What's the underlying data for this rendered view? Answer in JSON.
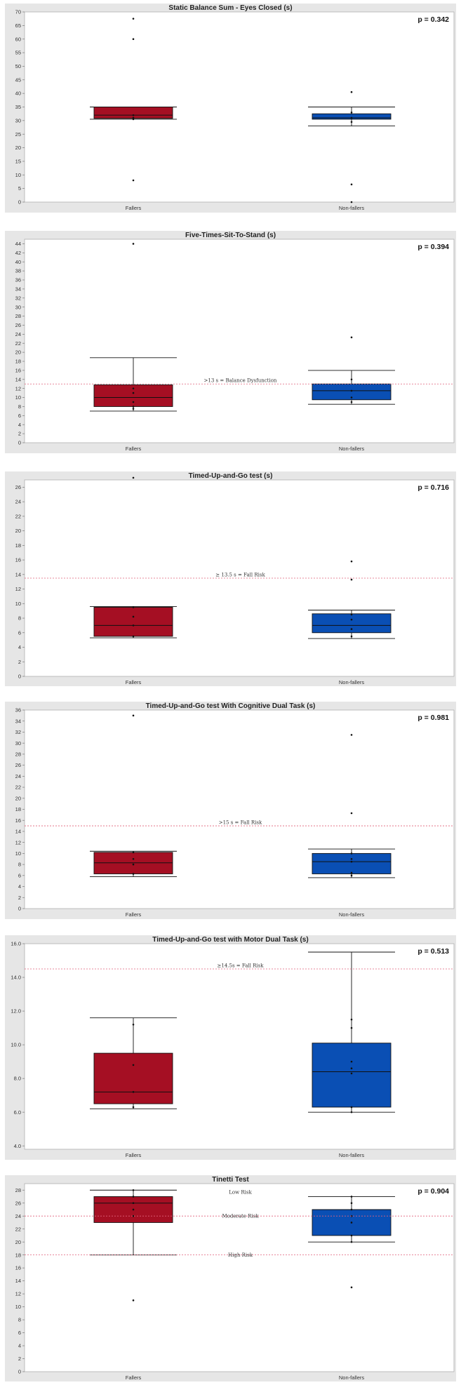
{
  "chart_data": [
    {
      "type": "box",
      "title": "Static Balance Sum - Eyes Closed (s)",
      "p_value": "p = 0.342",
      "categories": [
        "Fallers",
        "Non-fallers"
      ],
      "ylim": [
        0,
        70
      ],
      "yticks": [
        "0",
        "5",
        "10",
        "15",
        "20",
        "25",
        "30",
        "35",
        "40",
        "45",
        "50",
        "55",
        "60",
        "65",
        "70"
      ],
      "grid": false,
      "reference_lines": [],
      "boxes": [
        {
          "category": "Fallers",
          "color": "#a50f23",
          "whisker_low": 30.5,
          "q1": 30.8,
          "median": 32,
          "q3": 35,
          "whisker_high": 35,
          "points": [
            67.5,
            60,
            32,
            31,
            30.5,
            8
          ]
        },
        {
          "category": "Non-fallers",
          "color": "#0a4fb4",
          "whisker_low": 28,
          "q1": 30.5,
          "median": 31,
          "q3": 32.5,
          "whisker_high": 35,
          "points": [
            40.5,
            33,
            31,
            29.5,
            6.5,
            0
          ]
        }
      ]
    },
    {
      "type": "box",
      "title": "Five-Times-Sit-To-Stand (s)",
      "p_value": "p = 0.394",
      "categories": [
        "Fallers",
        "Non-fallers"
      ],
      "ylim": [
        0,
        45
      ],
      "yticks": [
        "0",
        "2",
        "4",
        "6",
        "8",
        "10",
        "12",
        "14",
        "16",
        "18",
        "20",
        "22",
        "24",
        "26",
        "28",
        "30",
        "32",
        "34",
        "36",
        "38",
        "40",
        "42",
        "44"
      ],
      "grid": false,
      "reference_lines": [
        {
          "value": 13,
          "label": ">13 s = Balance Dysfunction"
        }
      ],
      "boxes": [
        {
          "category": "Fallers",
          "color": "#a50f23",
          "whisker_low": 7,
          "q1": 8,
          "median": 10,
          "q3": 12.8,
          "whisker_high": 18.8,
          "points": [
            44,
            12,
            11,
            9,
            8,
            7.5
          ]
        },
        {
          "category": "Non-fallers",
          "color": "#0a4fb4",
          "whisker_low": 8.5,
          "q1": 9.5,
          "median": 11.5,
          "q3": 13,
          "whisker_high": 16,
          "points": [
            23.3,
            14,
            11.5,
            10,
            9
          ]
        }
      ]
    },
    {
      "type": "box",
      "title": "Timed-Up-and-Go test (s)",
      "p_value": "p = 0.716",
      "categories": [
        "Fallers",
        "Non-fallers"
      ],
      "ylim": [
        0,
        27
      ],
      "yticks": [
        "0",
        "2",
        "4",
        "6",
        "8",
        "10",
        "12",
        "14",
        "16",
        "18",
        "20",
        "22",
        "24",
        "26"
      ],
      "grid": false,
      "reference_lines": [
        {
          "value": 13.5,
          "label": "≥ 13.5 s = Fall Risk"
        }
      ],
      "boxes": [
        {
          "category": "Fallers",
          "color": "#a50f23",
          "whisker_low": 5.3,
          "q1": 5.5,
          "median": 7,
          "q3": 9.5,
          "whisker_high": 9.6,
          "points": [
            27.3,
            9.5,
            8.2,
            7,
            5.5
          ]
        },
        {
          "category": "Non-fallers",
          "color": "#0a4fb4",
          "whisker_low": 5.2,
          "q1": 6,
          "median": 7,
          "q3": 8.6,
          "whisker_high": 9.1,
          "points": [
            15.8,
            13.3,
            8.5,
            7.8,
            6.5,
            5.5
          ]
        }
      ]
    },
    {
      "type": "box",
      "title": "Timed-Up-and-Go test With Cognitive Dual Task (s)",
      "p_value": "p = 0.981",
      "categories": [
        "Fallers",
        "Non-fallers"
      ],
      "ylim": [
        0,
        36
      ],
      "yticks": [
        "0",
        "2",
        "4",
        "6",
        "8",
        "10",
        "12",
        "14",
        "16",
        "18",
        "20",
        "22",
        "24",
        "26",
        "28",
        "30",
        "32",
        "34",
        "36"
      ],
      "grid": false,
      "reference_lines": [
        {
          "value": 15,
          "label": ">15 s = Fall Risk"
        }
      ],
      "boxes": [
        {
          "category": "Fallers",
          "color": "#a50f23",
          "whisker_low": 5.8,
          "q1": 6.3,
          "median": 8.3,
          "q3": 10.2,
          "whisker_high": 10.4,
          "points": [
            35,
            10.2,
            9,
            8,
            6.3
          ]
        },
        {
          "category": "Non-fallers",
          "color": "#0a4fb4",
          "whisker_low": 5.6,
          "q1": 6.3,
          "median": 8.5,
          "q3": 10,
          "whisker_high": 10.8,
          "points": [
            31.5,
            17.3,
            10,
            9,
            8.5,
            6.5,
            6
          ]
        }
      ]
    },
    {
      "type": "box",
      "title": "Timed-Up-and-Go test with Motor Dual Task (s)",
      "p_value": "p = 0.513",
      "categories": [
        "Fallers",
        "Non-fallers"
      ],
      "ylim": [
        3.8,
        16
      ],
      "yticks": [
        "4.0",
        "6.0",
        "8.0",
        "10.0",
        "12.0",
        "14.0",
        "16.0"
      ],
      "ytick_values": [
        4,
        6,
        8,
        10,
        12,
        14,
        16
      ],
      "grid": false,
      "reference_lines": [
        {
          "value": 14.5,
          "label": "≥14.5s = Fall Risk"
        }
      ],
      "boxes": [
        {
          "category": "Fallers",
          "color": "#a50f23",
          "whisker_low": 6.2,
          "q1": 6.5,
          "median": 7.2,
          "q3": 9.5,
          "whisker_high": 11.6,
          "points": [
            11.2,
            8.8,
            7.2,
            6.3
          ]
        },
        {
          "category": "Non-fallers",
          "color": "#0a4fb4",
          "whisker_low": 6,
          "q1": 6.3,
          "median": 8.4,
          "q3": 10.1,
          "whisker_high": 15.5,
          "points": [
            11.5,
            11,
            9,
            8.6,
            8.3,
            6.3,
            6
          ]
        }
      ]
    },
    {
      "type": "box",
      "title": "Tinetti Test",
      "p_value": "p = 0.904",
      "categories": [
        "Fallers",
        "Non-fallers"
      ],
      "ylim": [
        0,
        29
      ],
      "yticks": [
        "0",
        "2",
        "4",
        "6",
        "8",
        "10",
        "12",
        "14",
        "16",
        "18",
        "20",
        "22",
        "24",
        "26",
        "28"
      ],
      "grid": false,
      "reference_lines": [
        {
          "value": 24,
          "label": "Moderate Risk"
        },
        {
          "value": 18,
          "label": "High Risk"
        }
      ],
      "region_labels": [
        {
          "value": 27,
          "label": "Low Risk"
        }
      ],
      "boxes": [
        {
          "category": "Fallers",
          "color": "#a50f23",
          "whisker_low": 18,
          "q1": 23,
          "median": 26,
          "q3": 27,
          "whisker_high": 28,
          "points": [
            28,
            27,
            26,
            25,
            24,
            11
          ]
        },
        {
          "category": "Non-fallers",
          "color": "#0a4fb4",
          "whisker_low": 20,
          "q1": 21,
          "median": 25,
          "q3": 25,
          "whisker_high": 27,
          "points": [
            27,
            26,
            25,
            24,
            23,
            21,
            20,
            13
          ]
        }
      ]
    }
  ]
}
